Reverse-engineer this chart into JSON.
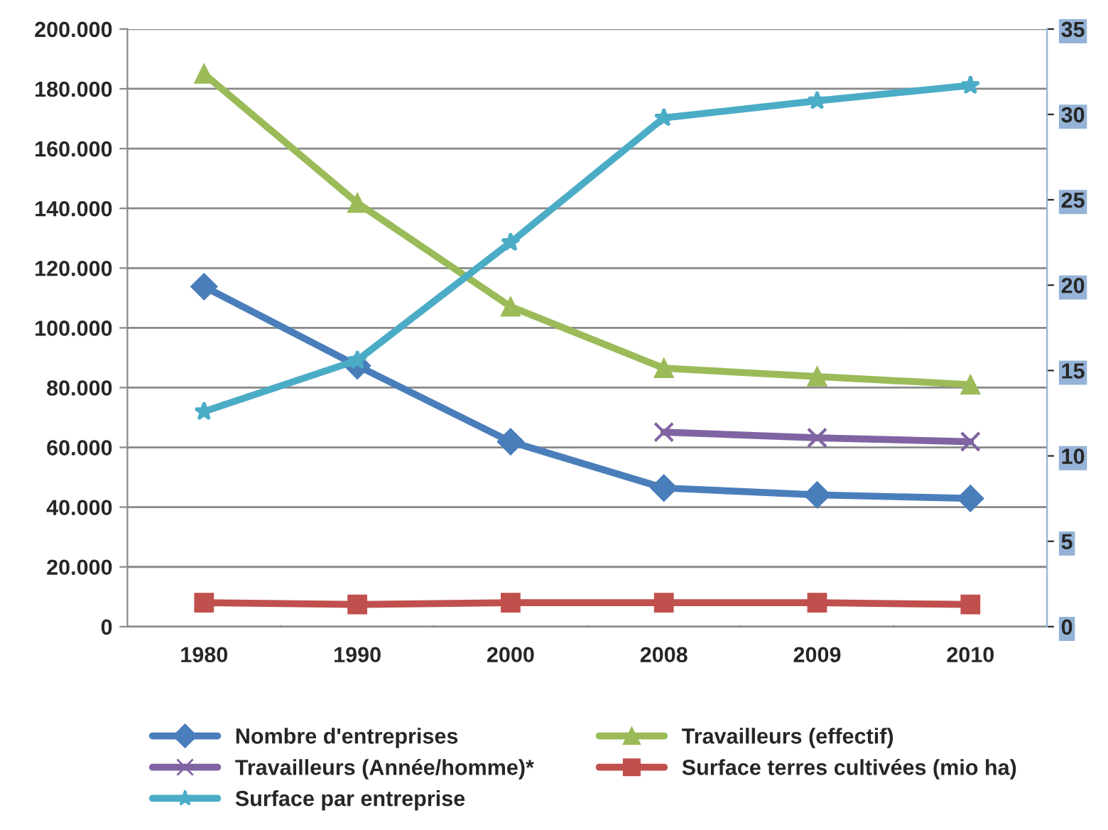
{
  "chart_data": {
    "type": "line",
    "categories": [
      "1980",
      "1990",
      "2000",
      "2008",
      "2009",
      "2010"
    ],
    "series": [
      {
        "name": "Nombre d'entreprises",
        "color": "#4a7ebb",
        "marker": "diamond",
        "values": [
          113800,
          87300,
          61900,
          46400,
          44100,
          42900
        ]
      },
      {
        "name": "Travailleurs (effectif)",
        "color": "#9bbb59",
        "marker": "triangle",
        "values": [
          185000,
          141800,
          107100,
          86500,
          83700,
          81000
        ]
      },
      {
        "name": "Travailleurs (Année/homme)*",
        "color": "#8064a2",
        "marker": "cross",
        "values": [
          null,
          null,
          null,
          65100,
          63200,
          61900
        ]
      },
      {
        "name": "Surface terres cultivées (mio ha)",
        "color": "#c0504d",
        "marker": "square",
        "axis": "y2",
        "values": [
          1.4,
          1.3,
          1.4,
          1.4,
          1.4,
          1.3
        ]
      },
      {
        "name": "Surface par entreprise",
        "color": "#4bacc6",
        "marker": "star",
        "axis": "y2",
        "values": [
          12.6,
          15.6,
          22.5,
          29.8,
          30.8,
          31.7
        ]
      }
    ],
    "ylim": [
      0,
      200000
    ],
    "yticks": [
      0,
      {
        "value": 20000,
        "label": "20.000"
      },
      {
        "value": 40000,
        "label": "40.000"
      },
      {
        "value": 60000,
        "label": "60.000"
      },
      {
        "value": 80000,
        "label": "80.000"
      },
      {
        "value": 100000,
        "label": "100.000"
      },
      {
        "value": 120000,
        "label": "120.000"
      },
      {
        "value": 140000,
        "label": "140.000"
      },
      {
        "value": 160000,
        "label": "160.000"
      },
      {
        "value": 180000,
        "label": "180.000"
      },
      {
        "value": 200000,
        "label": "200.000"
      }
    ],
    "y2lim": [
      0,
      35
    ],
    "y2ticks": [
      0,
      5,
      10,
      15,
      20,
      25,
      30,
      35
    ],
    "grid": "y",
    "legend": "bottom"
  }
}
